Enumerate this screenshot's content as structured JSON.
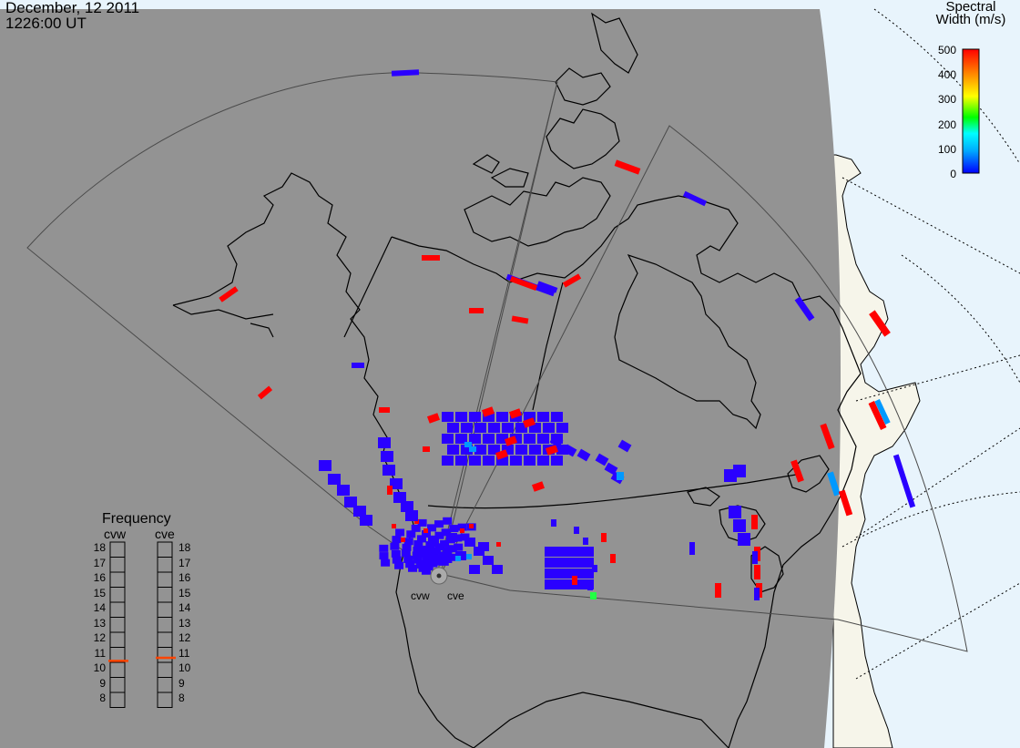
{
  "header": {
    "date": "December, 12 2011",
    "time": "1226:00 UT"
  },
  "colorbar": {
    "title_line1": "Spectral",
    "title_line2": "Width (m/s)",
    "ticks": [
      "500",
      "400",
      "300",
      "200",
      "100",
      "0"
    ],
    "range": [
      0,
      500
    ],
    "colors": [
      "#0000ff",
      "#00ffff",
      "#00ff00",
      "#ffff00",
      "#ff8800",
      "#ff0000"
    ]
  },
  "frequency_panel": {
    "title": "Frequency",
    "radars": [
      "cvw",
      "cve"
    ],
    "ticks": [
      "18",
      "17",
      "16",
      "15",
      "14",
      "13",
      "12",
      "11",
      "10",
      "9",
      "8"
    ],
    "range": [
      8,
      18
    ],
    "cvw_frequency": 10.6,
    "cve_frequency": 10.8,
    "marker_color": "#ff4400"
  },
  "sites": {
    "left": "cvw",
    "right": "cve"
  },
  "map_colors": {
    "night": "#939393",
    "day_sea": "#e8f4fc",
    "day_land": "#f6f5ea",
    "coast": "#000000",
    "fov": "#4a4a4a"
  }
}
